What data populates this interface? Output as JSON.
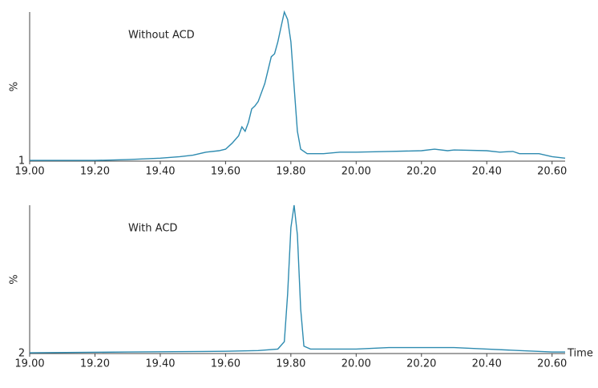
{
  "chart_data": [
    {
      "type": "line",
      "annotation": "Without ACD",
      "ylabel": "%",
      "trace_label": "1",
      "color": "#2e8bb0",
      "xlim": [
        19.0,
        20.64
      ],
      "ylim": [
        0,
        100
      ],
      "xticks": [
        {
          "value": 19.0,
          "label": "19.00"
        },
        {
          "value": 19.2,
          "label": "19.20"
        },
        {
          "value": 19.4,
          "label": "19.40"
        },
        {
          "value": 19.6,
          "label": "19.60"
        },
        {
          "value": 19.8,
          "label": "19.80"
        },
        {
          "value": 20.0,
          "label": "20.00"
        },
        {
          "value": 20.2,
          "label": "20.20"
        },
        {
          "value": 20.4,
          "label": "20.40"
        },
        {
          "value": 20.6,
          "label": "20.60"
        }
      ],
      "x": [
        19.0,
        19.2,
        19.3,
        19.4,
        19.46,
        19.5,
        19.54,
        19.58,
        19.6,
        19.62,
        19.64,
        19.65,
        19.66,
        19.67,
        19.68,
        19.69,
        19.7,
        19.72,
        19.74,
        19.75,
        19.76,
        19.77,
        19.78,
        19.79,
        19.8,
        19.81,
        19.82,
        19.83,
        19.85,
        19.9,
        19.95,
        20.0,
        20.1,
        20.2,
        20.24,
        20.28,
        20.3,
        20.4,
        20.44,
        20.48,
        20.5,
        20.56,
        20.6,
        20.64
      ],
      "values": [
        0.5,
        0.5,
        1,
        2,
        3,
        4,
        6,
        7,
        8,
        12,
        17,
        23,
        20,
        26,
        35,
        37,
        40,
        52,
        70,
        72,
        80,
        90,
        100,
        95,
        80,
        50,
        20,
        8,
        5,
        5,
        6,
        6,
        6.5,
        7,
        8,
        7,
        7.5,
        7,
        6,
        6.5,
        5,
        5,
        3,
        2
      ]
    },
    {
      "type": "line",
      "annotation": "With ACD",
      "ylabel": "%",
      "trace_label": "2",
      "xlabel": "Time",
      "color": "#2e8bb0",
      "xlim": [
        19.0,
        20.64
      ],
      "ylim": [
        0,
        100
      ],
      "xticks": [
        {
          "value": 19.0,
          "label": "19.00"
        },
        {
          "value": 19.2,
          "label": "19.20"
        },
        {
          "value": 19.4,
          "label": "19.40"
        },
        {
          "value": 19.6,
          "label": "19.60"
        },
        {
          "value": 19.8,
          "label": "19.80"
        },
        {
          "value": 20.0,
          "label": "20.00"
        },
        {
          "value": 20.2,
          "label": "20.20"
        },
        {
          "value": 20.4,
          "label": "20.40"
        },
        {
          "value": 20.6,
          "label": "20.60"
        }
      ],
      "x": [
        19.0,
        19.3,
        19.6,
        19.7,
        19.76,
        19.78,
        19.79,
        19.8,
        19.81,
        19.82,
        19.83,
        19.84,
        19.86,
        19.9,
        20.0,
        20.1,
        20.2,
        20.3,
        20.4,
        20.5,
        20.6,
        20.64
      ],
      "values": [
        0.5,
        1,
        1.5,
        2,
        3,
        8,
        40,
        85,
        100,
        80,
        30,
        5,
        3,
        3,
        3,
        4,
        4,
        4,
        3,
        2,
        1,
        1
      ]
    }
  ]
}
